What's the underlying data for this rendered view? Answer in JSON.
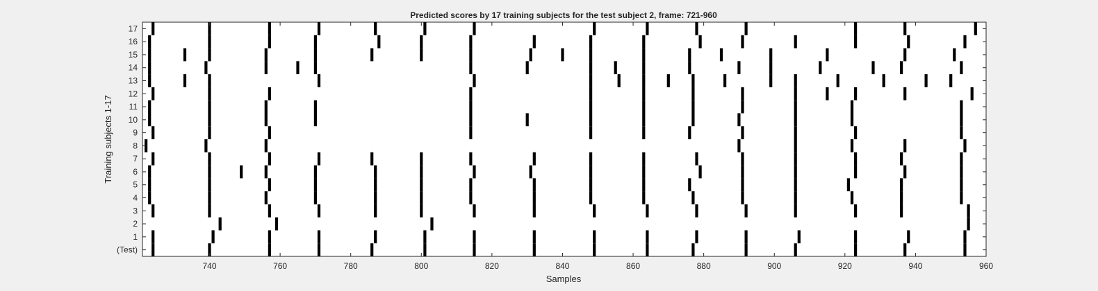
{
  "chart_data": {
    "type": "raster",
    "title": "Predicted scores by 17 training subjects for the test subject 2, frame: 721-960",
    "xlabel": "Samples",
    "ylabel": "Training subjects 1-17",
    "xlim": [
      721,
      960
    ],
    "xticks": [
      740,
      760,
      780,
      800,
      820,
      840,
      860,
      880,
      900,
      920,
      940,
      960
    ],
    "y_categories": [
      "(Test)",
      "1",
      "2",
      "3",
      "4",
      "5",
      "6",
      "7",
      "8",
      "9",
      "10",
      "11",
      "12",
      "13",
      "14",
      "15",
      "16",
      "17"
    ],
    "grid": false,
    "rows": [
      {
        "label": "(Test)",
        "events": [
          724,
          740,
          757,
          771,
          786,
          801,
          815,
          832,
          849,
          864,
          877,
          892,
          906,
          923,
          937,
          954
        ]
      },
      {
        "label": "1",
        "events": [
          724,
          741,
          757,
          771,
          787,
          801,
          815,
          832,
          849,
          864,
          878,
          892,
          907,
          923,
          938,
          954
        ]
      },
      {
        "label": "2",
        "events": [
          743,
          759,
          803,
          955
        ]
      },
      {
        "label": "3",
        "events": [
          724,
          740,
          757,
          771,
          787,
          800,
          815,
          832,
          849,
          864,
          878,
          892,
          906,
          923,
          936,
          955
        ]
      },
      {
        "label": "4",
        "events": [
          723,
          740,
          756,
          770,
          787,
          800,
          814,
          832,
          848,
          863,
          877,
          891,
          906,
          922,
          936,
          953
        ]
      },
      {
        "label": "5",
        "events": [
          723,
          740,
          757,
          770,
          787,
          800,
          814,
          832,
          848,
          863,
          876,
          891,
          906,
          921,
          936,
          953
        ]
      },
      {
        "label": "6",
        "events": [
          723,
          740,
          749,
          756,
          770,
          787,
          800,
          815,
          831,
          848,
          863,
          879,
          891,
          906,
          923,
          937,
          953
        ]
      },
      {
        "label": "7",
        "events": [
          724,
          740,
          757,
          771,
          786,
          800,
          814,
          832,
          848,
          863,
          878,
          891,
          906,
          923,
          936,
          953
        ]
      },
      {
        "label": "8",
        "events": [
          722,
          739,
          756,
          890,
          906,
          922,
          937,
          954
        ]
      },
      {
        "label": "9",
        "events": [
          724,
          740,
          757,
          814,
          848,
          863,
          876,
          891,
          906,
          923,
          953
        ]
      },
      {
        "label": "10",
        "events": [
          723,
          740,
          756,
          770,
          814,
          830,
          848,
          863,
          877,
          890,
          906,
          922,
          953
        ]
      },
      {
        "label": "11",
        "events": [
          723,
          740,
          756,
          770,
          814,
          848,
          863,
          877,
          891,
          906,
          922,
          953
        ]
      },
      {
        "label": "12",
        "events": [
          724,
          740,
          757,
          814,
          848,
          863,
          877,
          891,
          906,
          915,
          923,
          937,
          956
        ]
      },
      {
        "label": "13",
        "events": [
          723,
          733,
          740,
          771,
          815,
          848,
          856,
          863,
          870,
          877,
          886,
          899,
          906,
          918,
          931,
          943,
          950
        ]
      },
      {
        "label": "14",
        "events": [
          723,
          739,
          756,
          765,
          770,
          814,
          830,
          848,
          855,
          863,
          876,
          890,
          899,
          913,
          928,
          936,
          953
        ]
      },
      {
        "label": "15",
        "events": [
          723,
          733,
          740,
          756,
          770,
          786,
          800,
          814,
          831,
          840,
          848,
          863,
          876,
          885,
          899,
          915,
          937,
          951
        ]
      },
      {
        "label": "16",
        "events": [
          723,
          740,
          757,
          770,
          788,
          800,
          814,
          832,
          848,
          863,
          879,
          891,
          906,
          923,
          938,
          954
        ]
      },
      {
        "label": "17",
        "events": [
          724,
          740,
          757,
          771,
          787,
          801,
          815,
          849,
          864,
          878,
          892,
          923,
          937,
          957
        ]
      }
    ]
  }
}
